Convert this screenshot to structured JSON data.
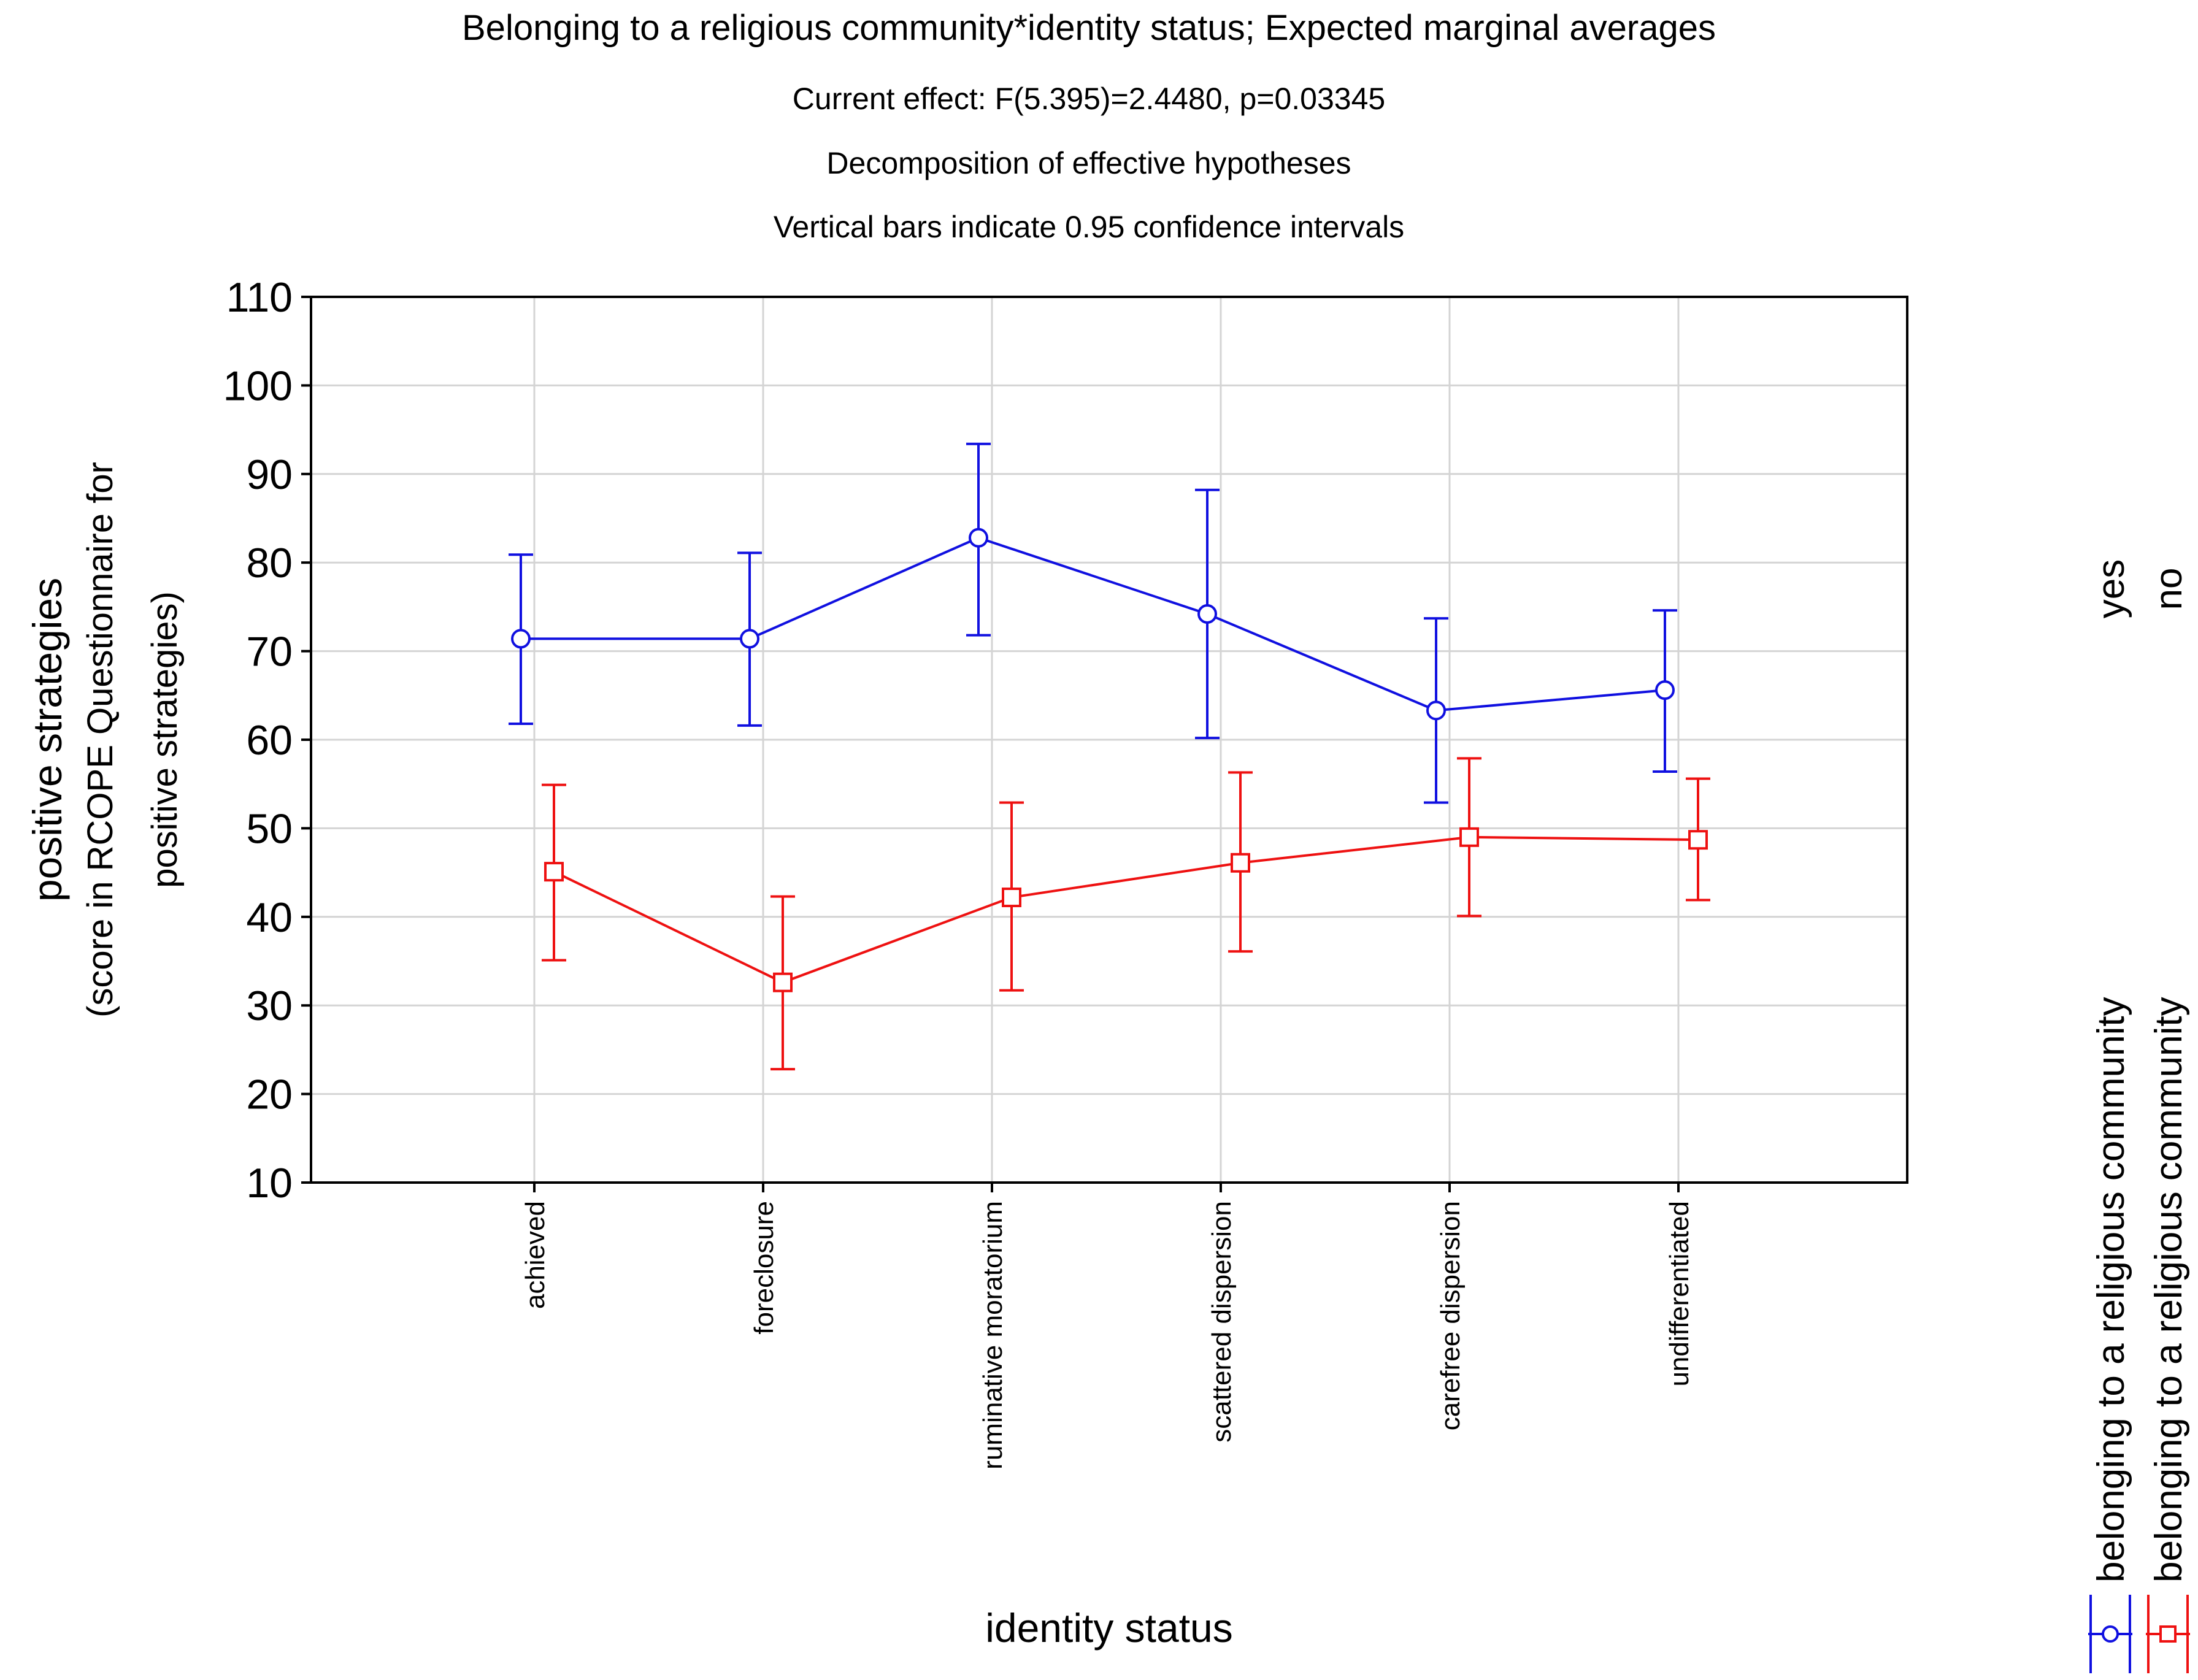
{
  "chart_data": {
    "type": "line",
    "title": "Belonging to a religious community*identity status; Expected marginal averages",
    "subtitles": [
      "Current effect: F(5.395)=2.4480, p=0.03345",
      "Decomposition of effective hypotheses",
      "Vertical bars indicate 0.95 confidence intervals"
    ],
    "xlabel": "identity status",
    "ylabel": "positive strategies",
    "ylabel_sub": [
      "(score in RCOPE Questionnaire for",
      "positive strategies)"
    ],
    "ylim": [
      10,
      110
    ],
    "yticks": [
      10,
      20,
      30,
      40,
      50,
      60,
      70,
      80,
      90,
      100,
      110
    ],
    "grid": true,
    "categories": [
      "achieved",
      "foreclosure",
      "ruminative moratorium",
      "scattered dispersion",
      "carefree dispersion",
      "undifferentiated"
    ],
    "series": [
      {
        "name": "belonging to a religious community",
        "legend_value": "yes",
        "color": "#1010e0",
        "marker": "circle",
        "values": [
          71.4,
          71.4,
          82.8,
          74.2,
          63.3,
          65.6
        ],
        "ci_low": [
          61.8,
          61.6,
          71.8,
          60.2,
          52.9,
          56.4
        ],
        "ci_high": [
          80.9,
          81.1,
          93.4,
          88.2,
          73.7,
          74.6
        ]
      },
      {
        "name": "belonging to a religious community",
        "legend_value": "no",
        "color": "#ee1111",
        "marker": "square",
        "values": [
          45.1,
          32.6,
          42.2,
          46.1,
          49.0,
          48.7
        ],
        "ci_low": [
          35.1,
          22.8,
          31.7,
          36.1,
          40.1,
          41.9
        ],
        "ci_high": [
          54.9,
          42.3,
          52.9,
          56.3,
          57.9,
          55.6
        ]
      }
    ]
  }
}
